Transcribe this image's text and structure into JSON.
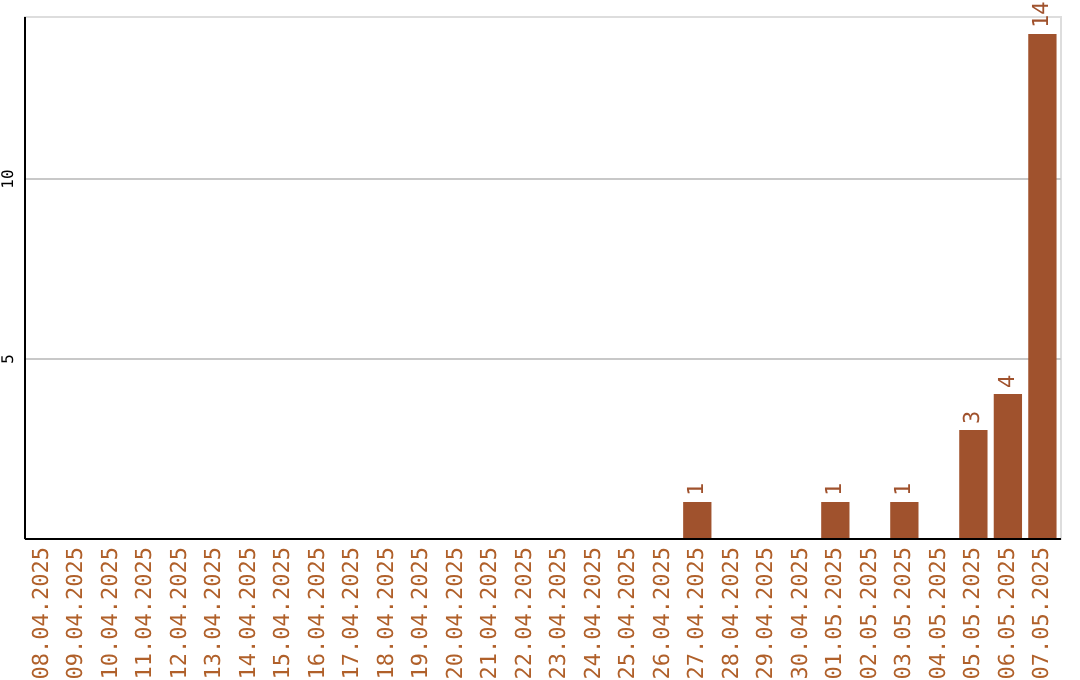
{
  "chart_data": {
    "type": "bar",
    "categories": [
      "08.04.2025",
      "09.04.2025",
      "10.04.2025",
      "11.04.2025",
      "12.04.2025",
      "13.04.2025",
      "14.04.2025",
      "15.04.2025",
      "16.04.2025",
      "17.04.2025",
      "18.04.2025",
      "19.04.2025",
      "20.04.2025",
      "21.04.2025",
      "22.04.2025",
      "23.04.2025",
      "24.04.2025",
      "25.04.2025",
      "26.04.2025",
      "27.04.2025",
      "28.04.2025",
      "29.04.2025",
      "30.04.2025",
      "01.05.2025",
      "02.05.2025",
      "03.05.2025",
      "04.05.2025",
      "05.05.2025",
      "06.05.2025",
      "07.05.2025"
    ],
    "values": [
      0,
      0,
      0,
      0,
      0,
      0,
      0,
      0,
      0,
      0,
      0,
      0,
      0,
      0,
      0,
      0,
      0,
      0,
      0,
      1,
      0,
      0,
      0,
      1,
      0,
      1,
      0,
      3,
      4,
      14
    ],
    "value_labels": [
      null,
      null,
      null,
      null,
      null,
      null,
      null,
      null,
      null,
      null,
      null,
      null,
      null,
      null,
      null,
      null,
      null,
      null,
      null,
      "1",
      null,
      null,
      null,
      "1",
      null,
      "1",
      null,
      "3",
      "4",
      "14"
    ],
    "color": "#a0522d",
    "ylim": [
      0,
      14.5
    ],
    "yticks": [
      5,
      10
    ],
    "grid": "y"
  }
}
